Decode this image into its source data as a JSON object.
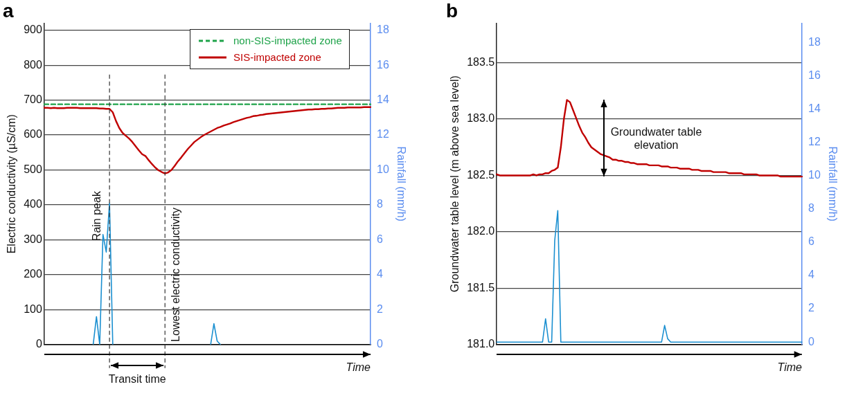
{
  "chart_data": [
    {
      "type": "line",
      "title": "a",
      "xlabel": "Time",
      "ylabel": "Electric conductivity (µS/cm)",
      "y2label": "Rainfall (mm/h)",
      "categories": [
        null,
        null,
        null,
        null,
        null,
        null,
        null,
        null,
        null,
        null,
        null,
        null,
        null,
        null,
        null,
        null,
        null,
        null,
        null,
        null,
        null,
        null,
        null,
        null,
        null,
        null,
        null,
        null,
        null,
        null,
        null,
        null,
        null,
        null,
        null,
        null,
        null,
        null,
        null,
        null,
        null,
        null,
        null,
        null,
        null,
        null,
        null,
        null,
        null,
        null,
        null,
        null,
        null,
        null,
        null,
        null,
        null,
        null,
        null,
        null,
        null,
        null,
        null,
        null,
        null,
        null,
        null,
        null,
        null,
        null,
        null,
        null,
        null,
        null,
        null,
        null,
        null,
        null,
        null,
        null,
        null,
        null,
        null,
        null,
        null,
        null,
        null,
        null,
        null,
        null,
        null,
        null,
        null,
        null,
        null,
        null,
        null,
        null,
        null,
        null,
        null
      ],
      "ylim": [
        0,
        920
      ],
      "yticks": [
        0,
        100,
        200,
        300,
        400,
        500,
        600,
        700,
        800,
        900
      ],
      "y2lim": [
        0,
        18.4
      ],
      "y2ticks": [
        0,
        2,
        4,
        6,
        8,
        10,
        12,
        14,
        16,
        18
      ],
      "tick_labels": "y",
      "grid": "y",
      "legend": "top right",
      "marker": "none",
      "series": [
        {
          "name": "non-SIS-impacted zone",
          "color": "#1fa34a",
          "line_style": "dashed",
          "values": [
            688,
            688,
            688,
            688,
            688,
            688,
            688,
            688,
            688,
            688,
            688,
            688,
            688,
            688,
            688,
            688,
            688,
            688,
            688,
            688,
            688,
            688,
            688,
            688,
            688,
            688,
            688,
            688,
            688,
            688,
            688,
            688,
            688,
            688,
            688,
            688,
            688,
            688,
            688,
            688,
            688,
            688,
            688,
            688,
            688,
            688,
            688,
            688,
            688,
            688,
            688,
            688,
            688,
            688,
            688,
            688,
            688,
            688,
            688,
            688,
            688,
            688,
            688,
            688,
            688,
            688,
            688,
            688,
            688,
            688,
            688,
            688,
            688,
            688,
            688,
            688,
            688,
            688,
            688,
            688,
            688,
            688,
            688,
            688,
            688,
            688,
            688,
            688,
            688,
            688,
            688,
            688,
            688,
            688,
            688,
            688,
            688,
            688,
            688,
            688,
            688
          ]
        },
        {
          "name": "SIS-impacted zone",
          "color": "#c00000",
          "line_style": "solid",
          "values": [
            678,
            678,
            677,
            678,
            677,
            677,
            677,
            678,
            678,
            678,
            678,
            677,
            677,
            677,
            677,
            677,
            677,
            676,
            676,
            675,
            675,
            665,
            640,
            620,
            606,
            598,
            590,
            580,
            568,
            556,
            545,
            540,
            528,
            517,
            507,
            499,
            494,
            490,
            493,
            500,
            512,
            525,
            536,
            548,
            560,
            570,
            580,
            587,
            594,
            600,
            605,
            610,
            615,
            620,
            623,
            627,
            630,
            633,
            637,
            640,
            643,
            646,
            649,
            651,
            654,
            655,
            657,
            658,
            660,
            661,
            662,
            663,
            664,
            665,
            666,
            667,
            668,
            669,
            670,
            671,
            672,
            673,
            673,
            674,
            674,
            675,
            675,
            676,
            676,
            677,
            678,
            678,
            678,
            679,
            679,
            679,
            679,
            679,
            680,
            680,
            680
          ]
        },
        {
          "color": "#1a8fd0",
          "axis": "y2",
          "values": [
            null,
            null,
            null,
            null,
            null,
            null,
            null,
            null,
            null,
            null,
            null,
            null,
            null,
            null,
            null,
            0,
            1.6,
            0,
            6.3,
            5.3,
            8.1,
            0,
            null,
            null,
            null,
            null,
            null,
            null,
            null,
            null,
            null,
            null,
            null,
            null,
            null,
            null,
            null,
            null,
            null,
            null,
            null,
            null,
            null,
            null,
            null,
            null,
            null,
            null,
            null,
            null,
            null,
            0,
            1.2,
            0.2,
            0,
            null,
            null,
            null,
            null,
            null,
            null,
            null,
            null,
            null,
            null,
            null,
            null,
            null,
            null,
            null,
            null,
            null,
            null,
            null,
            null,
            null,
            null,
            null,
            null,
            null,
            null,
            null,
            null,
            null,
            null,
            null,
            null,
            null,
            null,
            null,
            null,
            null,
            null,
            null,
            null,
            null,
            null,
            null,
            null,
            null,
            null
          ]
        }
      ],
      "annotations": [
        "Rain peak",
        "Lowest electric conductivity",
        "Transit time"
      ]
    },
    {
      "type": "line",
      "title": "b",
      "xlabel": "Time",
      "ylabel": "Groundwater table level (m above sea level)",
      "y2label": "Rainfall (mm/h)",
      "categories": [
        null,
        null,
        null,
        null,
        null,
        null,
        null,
        null,
        null,
        null,
        null,
        null,
        null,
        null,
        null,
        null,
        null,
        null,
        null,
        null,
        null,
        null,
        null,
        null,
        null,
        null,
        null,
        null,
        null,
        null,
        null,
        null,
        null,
        null,
        null,
        null,
        null,
        null,
        null,
        null,
        null,
        null,
        null,
        null,
        null,
        null,
        null,
        null,
        null,
        null,
        null,
        null,
        null,
        null,
        null,
        null,
        null,
        null,
        null,
        null,
        null,
        null,
        null,
        null,
        null,
        null,
        null,
        null,
        null,
        null,
        null,
        null,
        null,
        null,
        null,
        null,
        null,
        null,
        null,
        null,
        null,
        null,
        null,
        null,
        null,
        null,
        null,
        null,
        null,
        null,
        null,
        null,
        null,
        null,
        null,
        null,
        null,
        null,
        null,
        null,
        null
      ],
      "ylim": [
        181,
        183.85
      ],
      "yticks": [
        {
          "value": 181,
          "label": "181.0"
        },
        181.5,
        {
          "value": 182,
          "label": "182.0"
        },
        182.5,
        {
          "value": 183,
          "label": "183.0"
        },
        183.5
      ],
      "y2lim": [
        -0.15,
        19.15
      ],
      "y2ticks": [
        0,
        2,
        4,
        6,
        8,
        10,
        12,
        14,
        16,
        18
      ],
      "tick_labels": "y",
      "grid": "y",
      "marker": "none",
      "series": [
        {
          "color": "#c00000",
          "values": [
            182.51,
            182.5,
            182.5,
            182.5,
            182.5,
            182.5,
            182.5,
            182.5,
            182.5,
            182.5,
            182.5,
            182.5,
            182.51,
            182.5,
            182.51,
            182.51,
            182.52,
            182.52,
            182.54,
            182.55,
            182.57,
            182.75,
            183.0,
            183.17,
            183.15,
            183.08,
            183.01,
            182.94,
            182.88,
            182.84,
            182.79,
            182.75,
            182.73,
            182.71,
            182.69,
            182.68,
            182.67,
            182.66,
            182.64,
            182.64,
            182.63,
            182.63,
            182.62,
            182.62,
            182.61,
            182.61,
            182.6,
            182.6,
            182.6,
            182.6,
            182.59,
            182.59,
            182.59,
            182.59,
            182.58,
            182.58,
            182.58,
            182.57,
            182.57,
            182.57,
            182.56,
            182.56,
            182.56,
            182.56,
            182.55,
            182.55,
            182.55,
            182.54,
            182.54,
            182.54,
            182.54,
            182.53,
            182.53,
            182.53,
            182.53,
            182.53,
            182.52,
            182.52,
            182.52,
            182.52,
            182.52,
            182.51,
            182.51,
            182.51,
            182.51,
            182.51,
            182.5,
            182.5,
            182.5,
            182.5,
            182.5,
            182.5,
            182.5,
            182.49,
            182.49,
            182.49,
            182.49,
            182.49,
            182.49,
            182.49,
            182.49
          ]
        },
        {
          "color": "#1a8fd0",
          "axis": "y2",
          "values": [
            0,
            0,
            0,
            0,
            0,
            0,
            0,
            0,
            0,
            0,
            0,
            0,
            0,
            0,
            0,
            0,
            1.4,
            0,
            0,
            6.1,
            7.9,
            0,
            0,
            0,
            0,
            0,
            0,
            0,
            0,
            0,
            0,
            0,
            0,
            0,
            0,
            0,
            0,
            0,
            0,
            0,
            0,
            0,
            0,
            0,
            0,
            0,
            0,
            0,
            0,
            0,
            0,
            0,
            0,
            0,
            0,
            1.0,
            0.2,
            0,
            0,
            0,
            0,
            0,
            0,
            0,
            0,
            0,
            0,
            0,
            0,
            0,
            0,
            0,
            0,
            0,
            0,
            0,
            0,
            0,
            0,
            0,
            0,
            0,
            0,
            0,
            0,
            0,
            0,
            0,
            0,
            0,
            0,
            0,
            0,
            0,
            0,
            0,
            0,
            0,
            0,
            0,
            0
          ]
        }
      ],
      "annotations": [
        "Groundwater table elevation"
      ]
    }
  ]
}
